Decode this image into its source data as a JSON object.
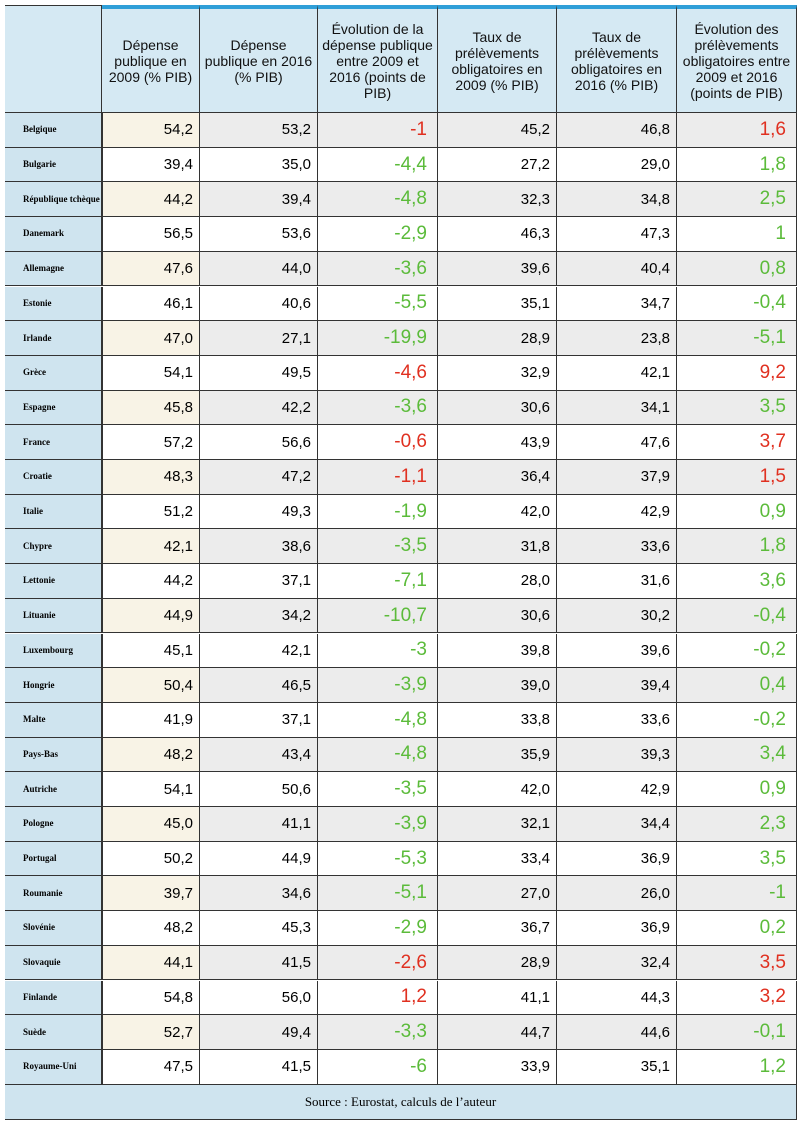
{
  "table": {
    "header": [
      "Dépense publique en 2009 (% PIB)",
      "Dépense publique en 2016 (% PIB)",
      "Évolution de la dépense publique entre 2009 et 2016 (points de PIB)",
      "Taux de prélèvements obligatoires en 2009 (% PIB)",
      "Taux de prélèvements obligatoires en 2016 (% PIB)",
      "Évolution des prélèvements obligatoires entre 2009 et 2016 (points de PIB)"
    ],
    "rows": [
      [
        "Belgique",
        "54,2",
        "53,2",
        "-1",
        "45,2",
        "46,8",
        "1,6"
      ],
      [
        "Bulgarie",
        "39,4",
        "35,0",
        "-4,4",
        "27,2",
        "29,0",
        "1,8"
      ],
      [
        "République tchèque",
        "44,2",
        "39,4",
        "-4,8",
        "32,3",
        "34,8",
        "2,5"
      ],
      [
        "Danemark",
        "56,5",
        "53,6",
        "-2,9",
        "46,3",
        "47,3",
        "1"
      ],
      [
        "Allemagne",
        "47,6",
        "44,0",
        "-3,6",
        "39,6",
        "40,4",
        "0,8"
      ],
      [
        "Estonie",
        "46,1",
        "40,6",
        "-5,5",
        "35,1",
        "34,7",
        "-0,4"
      ],
      [
        "Irlande",
        "47,0",
        "27,1",
        "-19,9",
        "28,9",
        "23,8",
        "-5,1"
      ],
      [
        "Grèce",
        "54,1",
        "49,5",
        "-4,6",
        "32,9",
        "42,1",
        "9,2"
      ],
      [
        "Espagne",
        "45,8",
        "42,2",
        "-3,6",
        "30,6",
        "34,1",
        "3,5"
      ],
      [
        "France",
        "57,2",
        "56,6",
        "-0,6",
        "43,9",
        "47,6",
        "3,7"
      ],
      [
        "Croatie",
        "48,3",
        "47,2",
        "-1,1",
        "36,4",
        "37,9",
        "1,5"
      ],
      [
        "Italie",
        "51,2",
        "49,3",
        "-1,9",
        "42,0",
        "42,9",
        "0,9"
      ],
      [
        "Chypre",
        "42,1",
        "38,6",
        "-3,5",
        "31,8",
        "33,6",
        "1,8"
      ],
      [
        "Lettonie",
        "44,2",
        "37,1",
        "-7,1",
        "28,0",
        "31,6",
        "3,6"
      ],
      [
        "Lituanie",
        "44,9",
        "34,2",
        "-10,7",
        "30,6",
        "30,2",
        "-0,4"
      ],
      [
        "Luxembourg",
        "45,1",
        "42,1",
        "-3",
        "39,8",
        "39,6",
        "-0,2"
      ],
      [
        "Hongrie",
        "50,4",
        "46,5",
        "-3,9",
        "39,0",
        "39,4",
        "0,4"
      ],
      [
        "Malte",
        "41,9",
        "37,1",
        "-4,8",
        "33,8",
        "33,6",
        "-0,2"
      ],
      [
        "Pays-Bas",
        "48,2",
        "43,4",
        "-4,8",
        "35,9",
        "39,3",
        "3,4"
      ],
      [
        "Autriche",
        "54,1",
        "50,6",
        "-3,5",
        "42,0",
        "42,9",
        "0,9"
      ],
      [
        "Pologne",
        "45,0",
        "41,1",
        "-3,9",
        "32,1",
        "34,4",
        "2,3"
      ],
      [
        "Portugal",
        "50,2",
        "44,9",
        "-5,3",
        "33,4",
        "36,9",
        "3,5"
      ],
      [
        "Roumanie",
        "39,7",
        "34,6",
        "-5,1",
        "27,0",
        "26,0",
        "-1"
      ],
      [
        "Slovénie",
        "48,2",
        "45,3",
        "-2,9",
        "36,7",
        "36,9",
        "0,2"
      ],
      [
        "Slovaquie",
        "44,1",
        "41,5",
        "-2,6",
        "28,9",
        "32,4",
        "3,5"
      ],
      [
        "Finlande",
        "54,8",
        "56,0",
        "1,2",
        "41,1",
        "44,3",
        "3,2"
      ],
      [
        "Suède",
        "52,7",
        "49,4",
        "-3,3",
        "44,7",
        "44,6",
        "-0,1"
      ],
      [
        "Royaume-Uni",
        "47,5",
        "41,5",
        "-6",
        "33,9",
        "35,1",
        "1,2"
      ]
    ],
    "evolution_colors": [
      "red",
      "green",
      "green",
      "green",
      "green",
      "green",
      "green",
      "red",
      "green",
      "red",
      "red",
      "green",
      "green",
      "green",
      "green",
      "green",
      "green",
      "green",
      "green",
      "green",
      "green",
      "green",
      "green",
      "green",
      "red",
      "red",
      "green",
      "green"
    ],
    "source": "Source : Eurostat, calculs de l’auteur"
  }
}
